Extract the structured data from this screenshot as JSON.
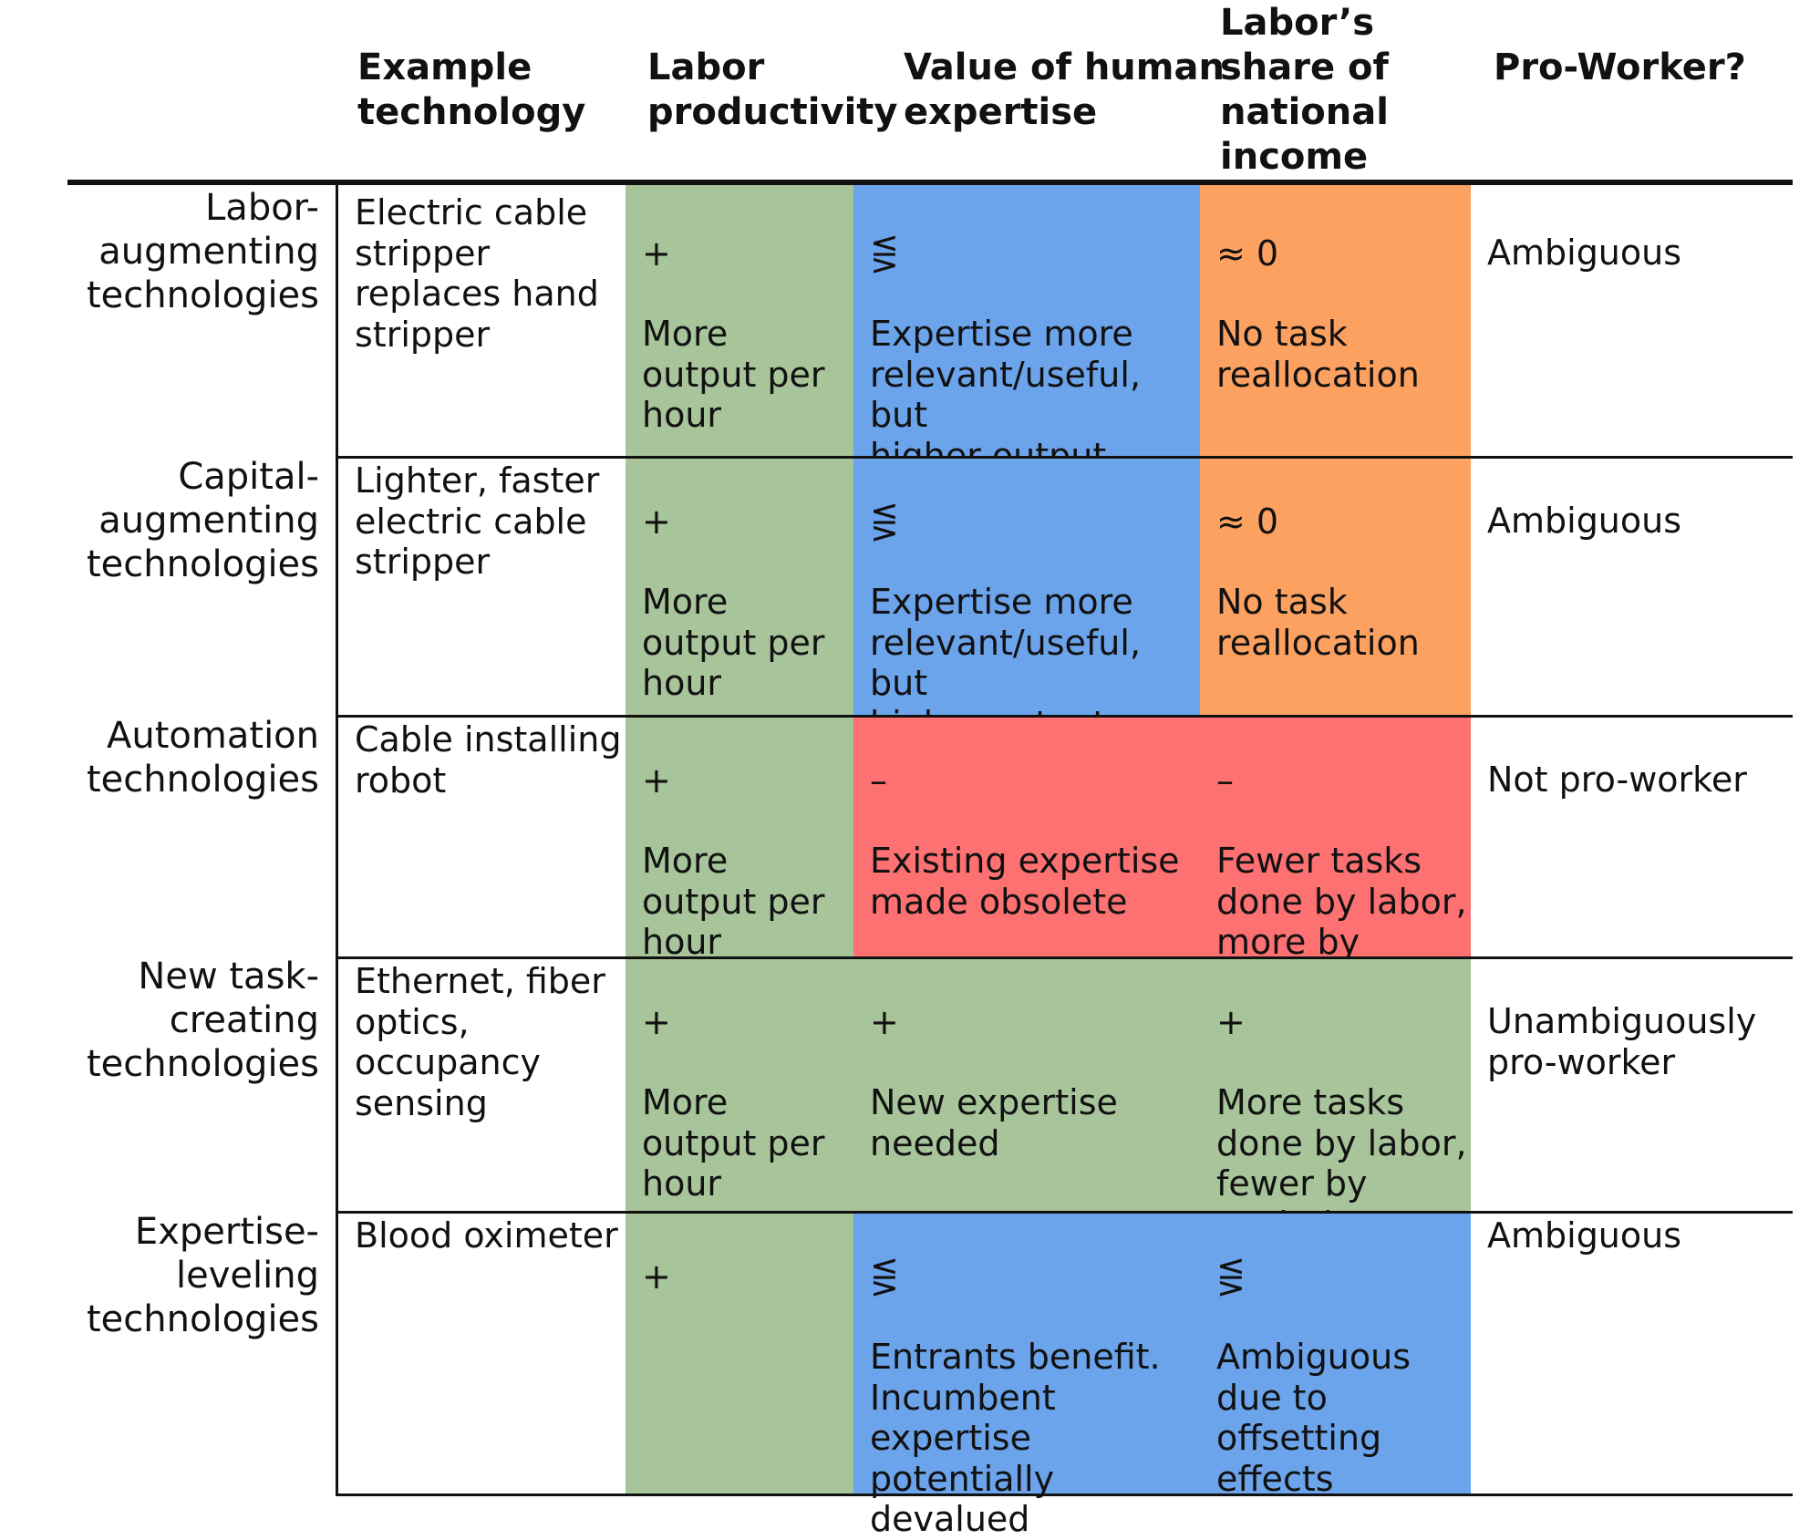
{
  "colors": {
    "green": "#a8c49a",
    "blue": "#6ca4ec",
    "orange": "#fda161",
    "red": "#fd7172",
    "rule": "#111111"
  },
  "columns": {
    "example": "Example\ntechnology",
    "productivity": "Labor\nproductivity",
    "expertise": "Value of human\nexpertise",
    "share": "Labor’s\nshare of\nnational\nincome",
    "proworker": "Pro-Worker?"
  },
  "rows": [
    {
      "label": "Labor-\naugmenting\ntechnologies",
      "example": "Electric cable\nstripper\nreplaces hand\nstripper",
      "productivity": {
        "symbol": "+",
        "text": "More\noutput per\nhour",
        "color": "green"
      },
      "expertise": {
        "symbol": "⋚",
        "text": "Expertise more\nrelevant/useful, but\nhigher output could\nlower price",
        "color": "blue"
      },
      "share": {
        "symbol": "≈ 0",
        "text": "No task\nreallocation",
        "color": "orange"
      },
      "proworker": "Ambiguous"
    },
    {
      "label": "Capital-\naugmenting\ntechnologies",
      "example": "Lighter, faster\nelectric cable\nstripper",
      "productivity": {
        "symbol": "+",
        "text": "More\noutput per\nhour",
        "color": "green"
      },
      "expertise": {
        "symbol": "⋚",
        "text": "Expertise more\nrelevant/useful, but\nhigher output could\nlower price",
        "color": "blue"
      },
      "share": {
        "symbol": "≈ 0",
        "text": "No task\nreallocation",
        "color": "orange"
      },
      "proworker": "Ambiguous"
    },
    {
      "label": "Automation\ntechnologies",
      "example": "Cable installing\nrobot",
      "productivity": {
        "symbol": "+",
        "text": "More\noutput per\nhour",
        "color": "green"
      },
      "expertise": {
        "symbol": "–",
        "text": "Existing expertise\nmade obsolete",
        "color": "red"
      },
      "share": {
        "symbol": "–",
        "text": "Fewer tasks\ndone by labor,\nmore by\ncapital",
        "color": "red"
      },
      "proworker": "Not pro-worker"
    },
    {
      "label": "New task-\ncreating\ntechnologies",
      "example": "Ethernet, fiber\noptics,\noccupancy\nsensing",
      "productivity": {
        "symbol": "+",
        "text": "More\noutput per\nhour",
        "color": "green"
      },
      "expertise": {
        "symbol": "+",
        "text": "New expertise\nneeded",
        "color": "green"
      },
      "share": {
        "symbol": "+",
        "text": "More tasks\ndone by labor,\nfewer by\ncapital",
        "color": "green"
      },
      "proworker": "Unambiguously\npro-worker"
    },
    {
      "label": "Expertise-\nleveling\ntechnologies",
      "example": "Blood oximeter",
      "productivity": {
        "symbol": "+",
        "text": "",
        "color": "green"
      },
      "expertise": {
        "symbol": "⋚",
        "text": "Entrants benefit.\nIncumbent\nexpertise\npotentially\ndevalued",
        "color": "blue"
      },
      "share": {
        "symbol": "⋚",
        "text": "Ambiguous\ndue to\noffsetting\neffects",
        "color": "blue"
      },
      "proworker": "Ambiguous"
    }
  ]
}
